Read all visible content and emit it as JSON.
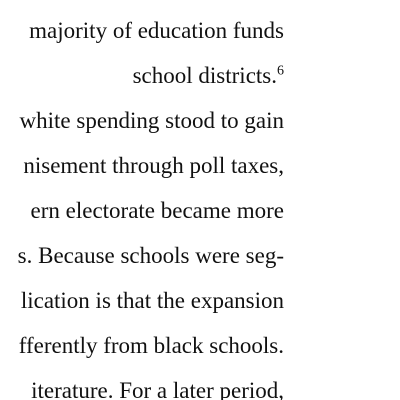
{
  "document": {
    "lines": [
      "majority of education funds",
      "school districts.",
      "white spending stood to gain",
      "nisement through poll taxes,",
      "ern electorate became more",
      "s. Because schools were seg-",
      "lication is that the expansion",
      "fferently from black schools.",
      "iterature.  For a later period,"
    ],
    "footnote_marker": "6"
  }
}
